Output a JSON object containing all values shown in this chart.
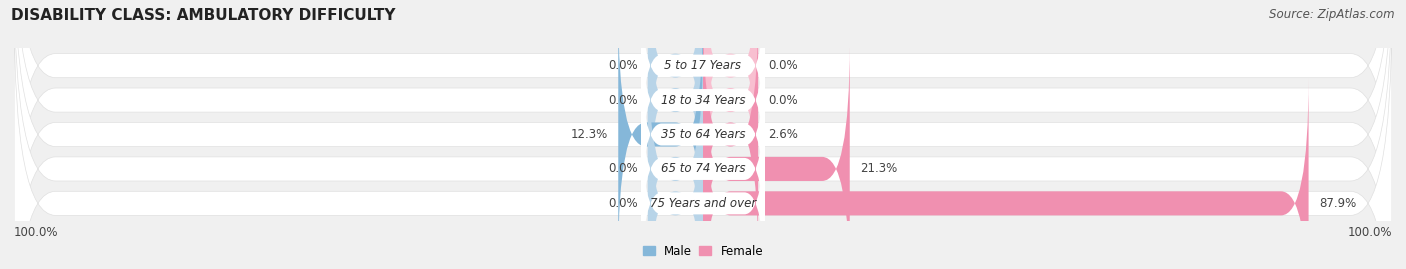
{
  "title": "DISABILITY CLASS: AMBULATORY DIFFICULTY",
  "source": "Source: ZipAtlas.com",
  "categories": [
    "5 to 17 Years",
    "18 to 34 Years",
    "35 to 64 Years",
    "65 to 74 Years",
    "75 Years and over"
  ],
  "male_values": [
    0.0,
    0.0,
    12.3,
    0.0,
    0.0
  ],
  "female_values": [
    0.0,
    0.0,
    2.6,
    21.3,
    87.9
  ],
  "male_color": "#85b7d9",
  "female_color": "#f090b0",
  "male_color_light": "#b8d4e8",
  "female_color_light": "#f8bfd0",
  "bar_bg_color": "#ebebeb",
  "bar_bg_color2": "#e0e0e0",
  "max_val": 100.0,
  "min_stub": 8.0,
  "legend_male": "Male",
  "legend_female": "Female",
  "left_label": "100.0%",
  "right_label": "100.0%",
  "title_fontsize": 11,
  "source_fontsize": 8.5,
  "label_fontsize": 8.5,
  "category_fontsize": 8.5,
  "bar_height": 0.7,
  "background_color": "#f0f0f0",
  "white": "#ffffff"
}
